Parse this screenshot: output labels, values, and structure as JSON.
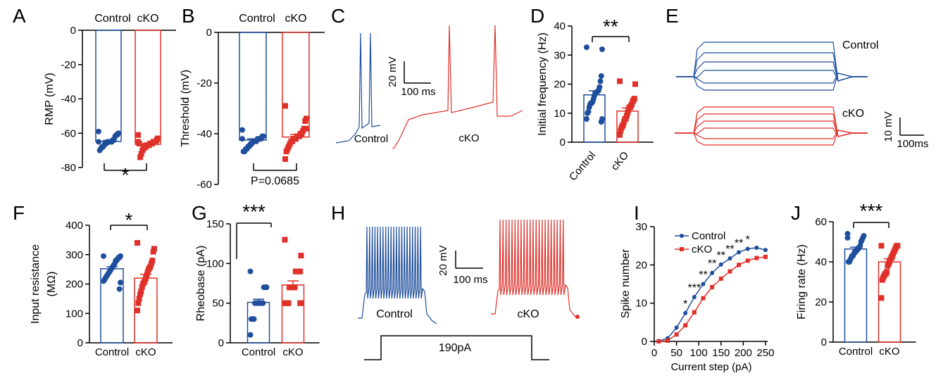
{
  "colors": {
    "control": "#1f4e9c",
    "cko": "#e0302a",
    "axis": "#000000"
  },
  "panel_labels": [
    "A",
    "B",
    "C",
    "D",
    "E",
    "F",
    "G",
    "H",
    "I",
    "J"
  ],
  "chart_data": [
    {
      "id": "A",
      "type": "bar",
      "ylabel": "RMP (mV)",
      "ylim": [
        -80,
        0
      ],
      "yticks": [
        0,
        -20,
        -40,
        -60,
        -80
      ],
      "categories": [
        "Control",
        "cKO"
      ],
      "means": [
        -64.8,
        -66.5
      ],
      "sem": [
        0.6,
        0.7
      ],
      "significance": "*",
      "points": [
        [
          -59,
          -60,
          -61,
          -61,
          -62,
          -64,
          -64,
          -65,
          -65,
          -65,
          -65,
          -65,
          -66,
          -66,
          -67,
          -68,
          -68,
          -69,
          -70,
          -65
        ],
        [
          -61,
          -63,
          -64,
          -65,
          -65,
          -65,
          -66,
          -66,
          -66,
          -67,
          -67,
          -67,
          -68,
          -68,
          -69,
          -70,
          -72,
          -74,
          -66,
          -65
        ]
      ]
    },
    {
      "id": "B",
      "type": "bar",
      "ylabel": "Threshold (mV)",
      "ylim": [
        -60,
        0
      ],
      "yticks": [
        0,
        -20,
        -40,
        -60
      ],
      "categories": [
        "Control",
        "cKO"
      ],
      "means": [
        -42.5,
        -41.3
      ],
      "sem": [
        0.5,
        1.0
      ],
      "significance": "P=0.0685",
      "points": [
        [
          -38.5,
          -41,
          -41,
          -42,
          -42,
          -42,
          -42,
          -43,
          -43,
          -43,
          -43,
          -44,
          -44,
          -45,
          -45,
          -46,
          -46,
          -47,
          -47,
          -42
        ],
        [
          -29,
          -34,
          -35,
          -38,
          -39,
          -40,
          -40,
          -41,
          -41,
          -41,
          -42,
          -42,
          -42,
          -43,
          -43,
          -44,
          -45,
          -46,
          -47,
          -50,
          -38
        ]
      ]
    },
    {
      "id": "D",
      "type": "bar",
      "ylabel": "Initial frequency (Hz)",
      "ylim": [
        0,
        40
      ],
      "yticks": [
        0,
        10,
        20,
        30,
        40
      ],
      "categories": [
        "Control",
        "cKO"
      ],
      "means": [
        16.3,
        10.7
      ],
      "sem": [
        1.4,
        1.1
      ],
      "significance": "**",
      "points": [
        [
          32.7,
          32,
          22.8,
          21,
          19,
          18,
          17.5,
          17.3,
          17,
          17,
          16,
          15,
          14,
          13.5,
          13.5,
          13,
          12,
          10.5,
          10,
          8,
          8,
          7
        ],
        [
          21,
          20,
          15,
          14.5,
          14,
          13,
          12.5,
          12,
          12,
          11,
          10,
          9,
          8,
          8,
          7,
          6,
          5.5,
          5,
          4,
          2.5
        ]
      ]
    },
    {
      "id": "F",
      "type": "bar",
      "ylabel": "Input resistance (MΩ)",
      "ylim": [
        0,
        400
      ],
      "yticks": [
        0,
        100,
        200,
        300,
        400
      ],
      "categories": [
        "Control",
        "cKO"
      ],
      "means": [
        252,
        220
      ],
      "sem": [
        7,
        13
      ],
      "significance": "*",
      "points": [
        [
          295,
          295,
          290,
          290,
          285,
          280,
          280,
          270,
          265,
          260,
          255,
          250,
          245,
          240,
          235,
          230,
          225,
          220,
          215,
          210,
          205,
          183
        ],
        [
          340,
          320,
          310,
          280,
          270,
          260,
          255,
          250,
          240,
          230,
          220,
          210,
          205,
          200,
          190,
          175,
          165,
          150,
          135,
          110
        ]
      ]
    },
    {
      "id": "G",
      "type": "bar",
      "ylabel": "Rheobase (pA)",
      "ylim": [
        0,
        150
      ],
      "yticks": [
        0,
        50,
        100,
        150
      ],
      "categories": [
        "Control",
        "cKO"
      ],
      "means": [
        51,
        73
      ],
      "sem": [
        4,
        5
      ],
      "significance": "***",
      "points": [
        [
          90,
          70,
          70,
          70,
          70,
          50,
          50,
          50,
          50,
          50,
          50,
          50,
          50,
          50,
          50,
          30,
          30,
          30,
          30,
          10
        ],
        [
          130,
          110,
          90,
          90,
          90,
          90,
          90,
          90,
          70,
          70,
          70,
          70,
          70,
          70,
          70,
          50,
          50,
          50,
          50,
          50,
          50,
          50
        ]
      ]
    },
    {
      "id": "I",
      "type": "line",
      "xlabel": "Current step (pA)",
      "ylabel": "Spike number",
      "xlim": [
        0,
        250
      ],
      "ylim": [
        0,
        30
      ],
      "xticks": [
        0,
        50,
        100,
        150,
        200,
        250
      ],
      "yticks": [
        0,
        10,
        20,
        30
      ],
      "legend": "top-left",
      "x": [
        10,
        30,
        50,
        70,
        90,
        110,
        130,
        150,
        170,
        190,
        210,
        230,
        250
      ],
      "series": [
        {
          "name": "Control",
          "values": [
            0.1,
            0.8,
            3.6,
            7.4,
            11.6,
            15.0,
            17.9,
            20.1,
            21.7,
            23.3,
            24.2,
            24.5,
            23.9
          ]
        },
        {
          "name": "cKO",
          "values": [
            0,
            0.2,
            1.8,
            4.2,
            7.6,
            11.3,
            14.2,
            16.4,
            18.3,
            20.0,
            21.1,
            21.8,
            22.1
          ]
        }
      ],
      "annotations": [
        {
          "x": 70,
          "text": "*"
        },
        {
          "x": 90,
          "text": "***"
        },
        {
          "x": 110,
          "text": "**"
        },
        {
          "x": 130,
          "text": "**"
        },
        {
          "x": 150,
          "text": "**"
        },
        {
          "x": 170,
          "text": "**"
        },
        {
          "x": 190,
          "text": "**"
        },
        {
          "x": 210,
          "text": "*"
        }
      ]
    },
    {
      "id": "J",
      "type": "bar",
      "ylabel": "Firing rate (Hz)",
      "ylim": [
        0,
        60
      ],
      "yticks": [
        0,
        20,
        40,
        60
      ],
      "categories": [
        "Control",
        "cKO"
      ],
      "means": [
        46.4,
        40
      ],
      "sem": [
        0.9,
        1.5
      ],
      "significance": "***",
      "points": [
        [
          54,
          53,
          52,
          51,
          50,
          48,
          47,
          47,
          46,
          46,
          45,
          45,
          44,
          43,
          43,
          42,
          41,
          40,
          40,
          52
        ],
        [
          48,
          48,
          48,
          47,
          46,
          45,
          44,
          43,
          42,
          41,
          40,
          39,
          38,
          35,
          34,
          34,
          33,
          32,
          31,
          22
        ]
      ]
    }
  ],
  "traces": {
    "C": {
      "labels": [
        "Control",
        "cKO"
      ],
      "scale_v": "20 mV",
      "scale_t": "100 ms"
    },
    "E": {
      "labels": [
        "Control",
        "cKO"
      ],
      "scale_v": "10 mV",
      "scale_t": "100ms"
    },
    "H": {
      "labels": [
        "Control",
        "cKO"
      ],
      "scale_v": "20 mV",
      "scale_t": "100 ms",
      "stimulus": "190pA"
    }
  }
}
